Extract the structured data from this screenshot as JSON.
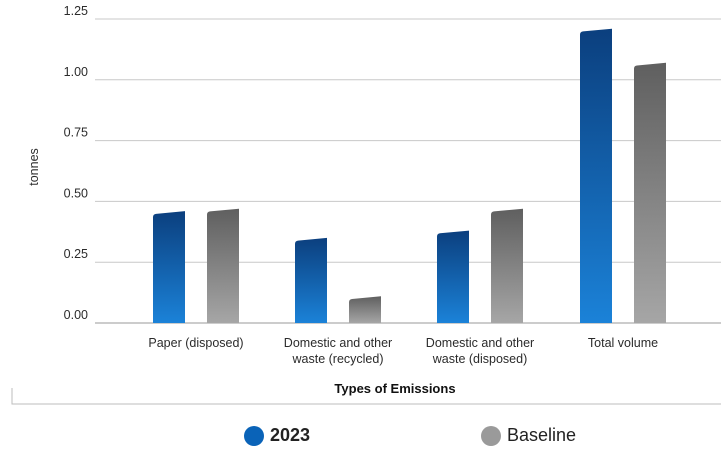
{
  "chart_data": {
    "type": "bar",
    "xlabel": "Types of Emissions",
    "ylabel": "tonnes",
    "ylim": [
      0,
      1.25
    ],
    "yticks": [
      "0.00",
      "0.25",
      "0.50",
      "0.75",
      "1.00",
      "1.25"
    ],
    "categories": [
      [
        "Paper (disposed)"
      ],
      [
        "Domestic and other",
        "waste (recycled)"
      ],
      [
        "Domestic and other",
        "waste (disposed)"
      ],
      [
        "Total volume"
      ]
    ],
    "series": [
      {
        "name": "2023",
        "values": [
          0.46,
          0.35,
          0.38,
          1.21
        ],
        "color": "#0a63b8"
      },
      {
        "name": "Baseline",
        "values": [
          0.47,
          0.11,
          0.47,
          1.07
        ],
        "color": "#8c8c8c"
      }
    ],
    "grid": true,
    "legend_position": "bottom"
  },
  "legend": {
    "series_1": "2023",
    "series_2": "Baseline"
  }
}
